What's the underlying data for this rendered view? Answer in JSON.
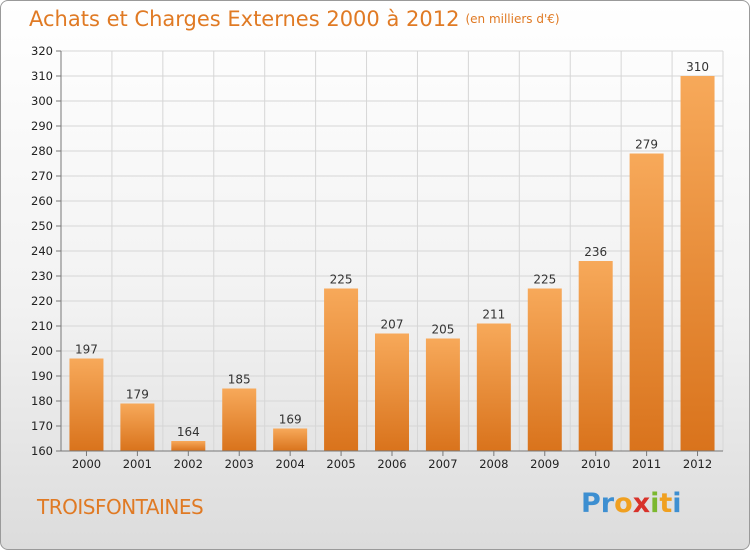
{
  "title": "Achats et Charges Externes 2000 à 2012",
  "subtitle": "(en milliers d'€)",
  "commune": "TROISFONTAINES",
  "logo": {
    "letters": [
      "P",
      "r",
      "o",
      "x",
      "i",
      "t",
      "i"
    ],
    "colors": [
      "#3d8fd1",
      "#3d8fd1",
      "#f0a020",
      "#d8322a",
      "#7cb82f",
      "#f0a020",
      "#3d8fd1"
    ]
  },
  "colors": {
    "bar_light": "#f7a95a",
    "bar_dark": "#d9731c",
    "title": "#e07a24"
  },
  "chart_data": {
    "type": "bar",
    "categories": [
      "2000",
      "2001",
      "2002",
      "2003",
      "2004",
      "2005",
      "2006",
      "2007",
      "2008",
      "2009",
      "2010",
      "2011",
      "2012"
    ],
    "values": [
      197,
      179,
      164,
      185,
      169,
      225,
      207,
      205,
      211,
      225,
      236,
      279,
      310
    ],
    "ylim": [
      160,
      320
    ],
    "yticks": [
      160,
      170,
      180,
      190,
      200,
      210,
      220,
      230,
      240,
      250,
      260,
      270,
      280,
      290,
      300,
      310,
      320
    ],
    "grid": true
  }
}
